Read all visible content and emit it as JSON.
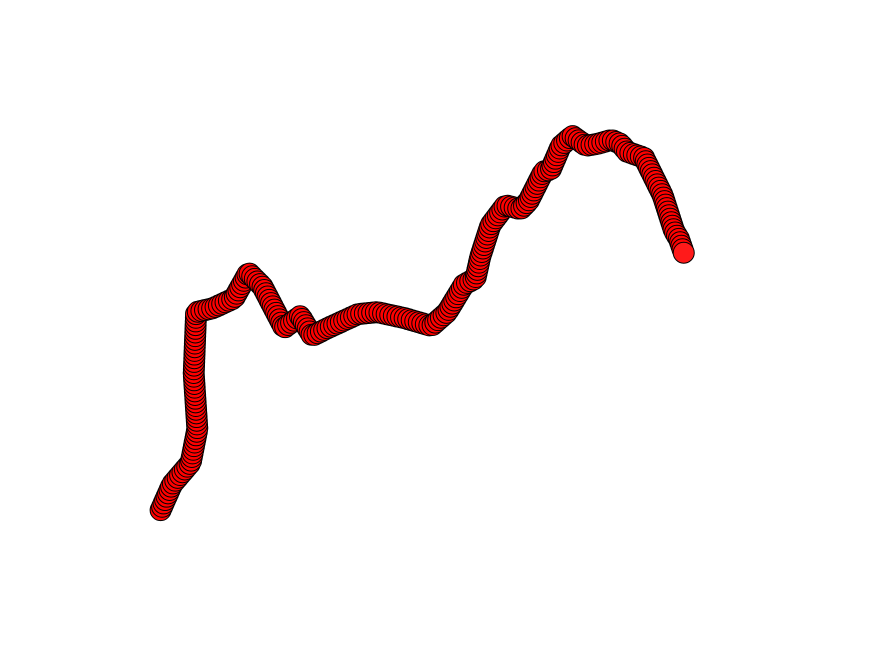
{
  "chart_data": {
    "type": "scatter",
    "title": "",
    "xlabel": "",
    "ylabel": "",
    "axes_visible": false,
    "grid": false,
    "legend": "none",
    "marker": {
      "shape": "circle",
      "face_color": "#ff0000",
      "edge_color": "#000000"
    },
    "xlim": [
      0,
      100
    ],
    "ylim": [
      0,
      100
    ],
    "path_vertices": {
      "x": [
        0.6,
        2.5,
        5.6,
        6.7,
        6.1,
        6.5,
        9.3,
        12.8,
        15.2,
        17.5,
        21.1,
        23.8,
        25.8,
        28.4,
        33.4,
        36.6,
        41.1,
        45.6,
        48.2,
        51.0,
        52.9,
        53.7,
        55.4,
        57.9,
        60.4,
        61.7,
        64.2,
        65.4,
        67.1,
        69.0,
        71.3,
        73.2,
        75.5,
        77.0,
        78.1,
        80.9,
        84.0,
        85.9,
        86.7,
        87.5
      ],
      "y": [
        3.5,
        10.0,
        15.5,
        24.0,
        38.0,
        53.5,
        54.5,
        57.0,
        63.5,
        60.0,
        49.5,
        52.5,
        47.5,
        49.5,
        53.0,
        53.5,
        52.0,
        50.0,
        53.5,
        60.5,
        62.0,
        67.5,
        75.5,
        80.5,
        79.5,
        81.5,
        89.0,
        89.5,
        95.5,
        98.0,
        95.5,
        96.0,
        97.0,
        96.0,
        94.0,
        92.5,
        83.0,
        74.0,
        72.0,
        68.5
      ]
    },
    "point_count": 260,
    "highlight_last": {
      "face_color": "#ff1a1a",
      "edge_color": "#000000"
    }
  }
}
